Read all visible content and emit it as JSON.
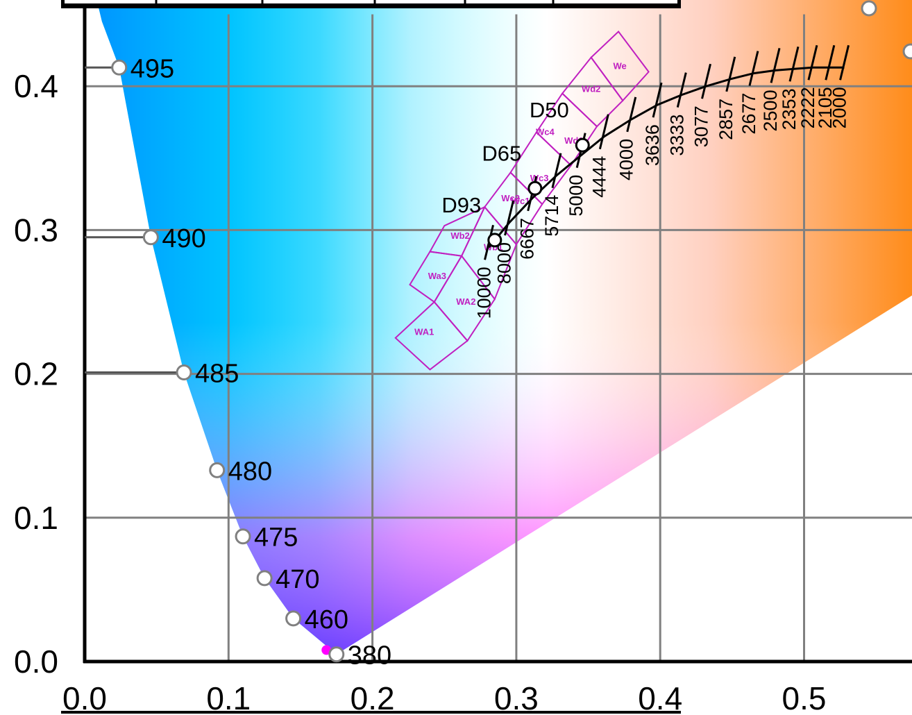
{
  "chart_data": {
    "type": "scatter",
    "title": "",
    "xlabel": "",
    "ylabel": "",
    "xlim": [
      0,
      0.56
    ],
    "ylim": [
      0,
      0.45
    ],
    "grid": true,
    "x_ticks": [
      "0.0",
      "0.1",
      "0.2",
      "0.3",
      "0.4",
      "0.5"
    ],
    "y_ticks": [
      "0.0",
      "0.1",
      "0.2",
      "0.3",
      "0.4"
    ],
    "spectral_locus": [
      {
        "label": "495",
        "x": 0.024,
        "y": 0.413
      },
      {
        "label": "490",
        "x": 0.046,
        "y": 0.295
      },
      {
        "label": "485",
        "x": 0.069,
        "y": 0.201
      },
      {
        "label": "480",
        "x": 0.092,
        "y": 0.133
      },
      {
        "label": "475",
        "x": 0.11,
        "y": 0.087
      },
      {
        "label": "470",
        "x": 0.125,
        "y": 0.058
      },
      {
        "label": "460",
        "x": 0.145,
        "y": 0.03
      },
      {
        "label": "380",
        "x": 0.175,
        "y": 0.005
      }
    ],
    "illuminants": [
      {
        "label": "D50",
        "x": 0.346,
        "y": 0.359
      },
      {
        "label": "D65",
        "x": 0.313,
        "y": 0.329
      },
      {
        "label": "D93",
        "x": 0.285,
        "y": 0.293
      }
    ],
    "planckian_locus": [
      {
        "cct": "10000",
        "x": 0.281,
        "y": 0.288
      },
      {
        "cct": "8000",
        "x": 0.295,
        "y": 0.305
      },
      {
        "cct": "6667",
        "x": 0.311,
        "y": 0.322
      },
      {
        "cct": "5714",
        "x": 0.328,
        "y": 0.338
      },
      {
        "cct": "5000",
        "x": 0.345,
        "y": 0.352
      },
      {
        "cct": "4444",
        "x": 0.361,
        "y": 0.365
      },
      {
        "cct": "4000",
        "x": 0.38,
        "y": 0.377
      },
      {
        "cct": "3636",
        "x": 0.398,
        "y": 0.387
      },
      {
        "cct": "3333",
        "x": 0.415,
        "y": 0.394
      },
      {
        "cct": "3077",
        "x": 0.432,
        "y": 0.4
      },
      {
        "cct": "2857",
        "x": 0.449,
        "y": 0.405
      },
      {
        "cct": "2677",
        "x": 0.465,
        "y": 0.409
      },
      {
        "cct": "2500",
        "x": 0.48,
        "y": 0.411
      },
      {
        "cct": "2353",
        "x": 0.493,
        "y": 0.412
      },
      {
        "cct": "2222",
        "x": 0.506,
        "y": 0.413
      },
      {
        "cct": "2105",
        "x": 0.518,
        "y": 0.413
      },
      {
        "cct": "2000",
        "x": 0.528,
        "y": 0.413
      }
    ],
    "white_zones": [
      "WA1",
      "WA2",
      "Wa3",
      "Wb2",
      "Wb1",
      "Wc1",
      "Wc2",
      "Wc3",
      "Wc4",
      "Wd1",
      "Wd2",
      "We"
    ],
    "colors": {
      "locus_marker": "#ffffff",
      "zone_outline": "#c020c0",
      "grid": "#808080"
    }
  }
}
